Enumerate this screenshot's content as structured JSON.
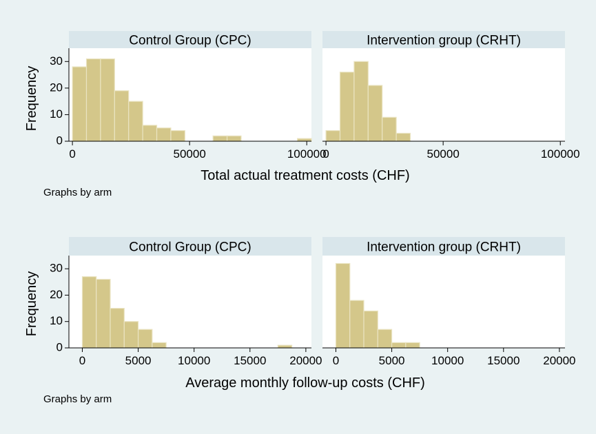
{
  "chart_data": [
    {
      "type": "bar",
      "title": "Control Group (CPC)",
      "xlabel": "Total actual treatment costs (CHF)",
      "ylabel": "Frequency",
      "xlim": [
        -1500,
        102000
      ],
      "ylim": [
        0,
        35
      ],
      "xticks": [
        0,
        50000,
        100000
      ],
      "yticks": [
        0,
        10,
        20,
        30
      ],
      "bin_width": 6000,
      "bins_start": [
        0,
        6000,
        12000,
        18000,
        24000,
        30000,
        36000,
        42000,
        48000,
        54000,
        60000,
        66000,
        72000,
        78000,
        84000,
        90000,
        96000
      ],
      "values": [
        28,
        31,
        31,
        19,
        15,
        6,
        5,
        4,
        0,
        0,
        2,
        2,
        0,
        0,
        0,
        0,
        1
      ]
    },
    {
      "type": "bar",
      "title": "Intervention group (CRHT)",
      "xlabel": "Total actual treatment costs (CHF)",
      "ylabel": "Frequency",
      "xlim": [
        -1500,
        102000
      ],
      "ylim": [
        0,
        35
      ],
      "xticks": [
        0,
        50000,
        100000
      ],
      "yticks": [
        0,
        10,
        20,
        30
      ],
      "bin_width": 6000,
      "bins_start": [
        0,
        6000,
        12000,
        18000,
        24000,
        30000
      ],
      "values": [
        4,
        26,
        30,
        21,
        9,
        3
      ]
    },
    {
      "type": "bar",
      "title": "Control Group (CPC)",
      "xlabel": "Average monthly follow-up costs (CHF)",
      "ylabel": "Frequency",
      "xlim": [
        -1200,
        20500
      ],
      "ylim": [
        0,
        35
      ],
      "xticks": [
        0,
        5000,
        10000,
        15000,
        20000
      ],
      "yticks": [
        0,
        10,
        20,
        30
      ],
      "bin_width": 1250,
      "bins_start": [
        0,
        1250,
        2500,
        3750,
        5000,
        6250,
        7500,
        8750,
        10000,
        11250,
        12500,
        13750,
        15000,
        16250,
        17500
      ],
      "values": [
        27,
        26,
        15,
        10,
        7,
        2,
        0,
        0,
        0,
        0,
        0,
        0,
        0,
        0,
        1
      ]
    },
    {
      "type": "bar",
      "title": "Intervention group (CRHT)",
      "xlabel": "Average monthly follow-up costs (CHF)",
      "ylabel": "Frequency",
      "xlim": [
        -1200,
        20500
      ],
      "ylim": [
        0,
        35
      ],
      "xticks": [
        0,
        5000,
        10000,
        15000,
        20000
      ],
      "yticks": [
        0,
        10,
        20,
        30
      ],
      "bin_width": 1250,
      "bins_start": [
        0,
        1250,
        2500,
        3750,
        5000,
        6250
      ],
      "values": [
        32,
        18,
        14,
        7,
        2,
        2
      ]
    }
  ],
  "figure": {
    "top_xlabel": "Total actual treatment costs (CHF)",
    "bottom_xlabel": "Average monthly follow-up costs (CHF)",
    "ylabel": "Frequency",
    "note": "Graphs by arm"
  }
}
